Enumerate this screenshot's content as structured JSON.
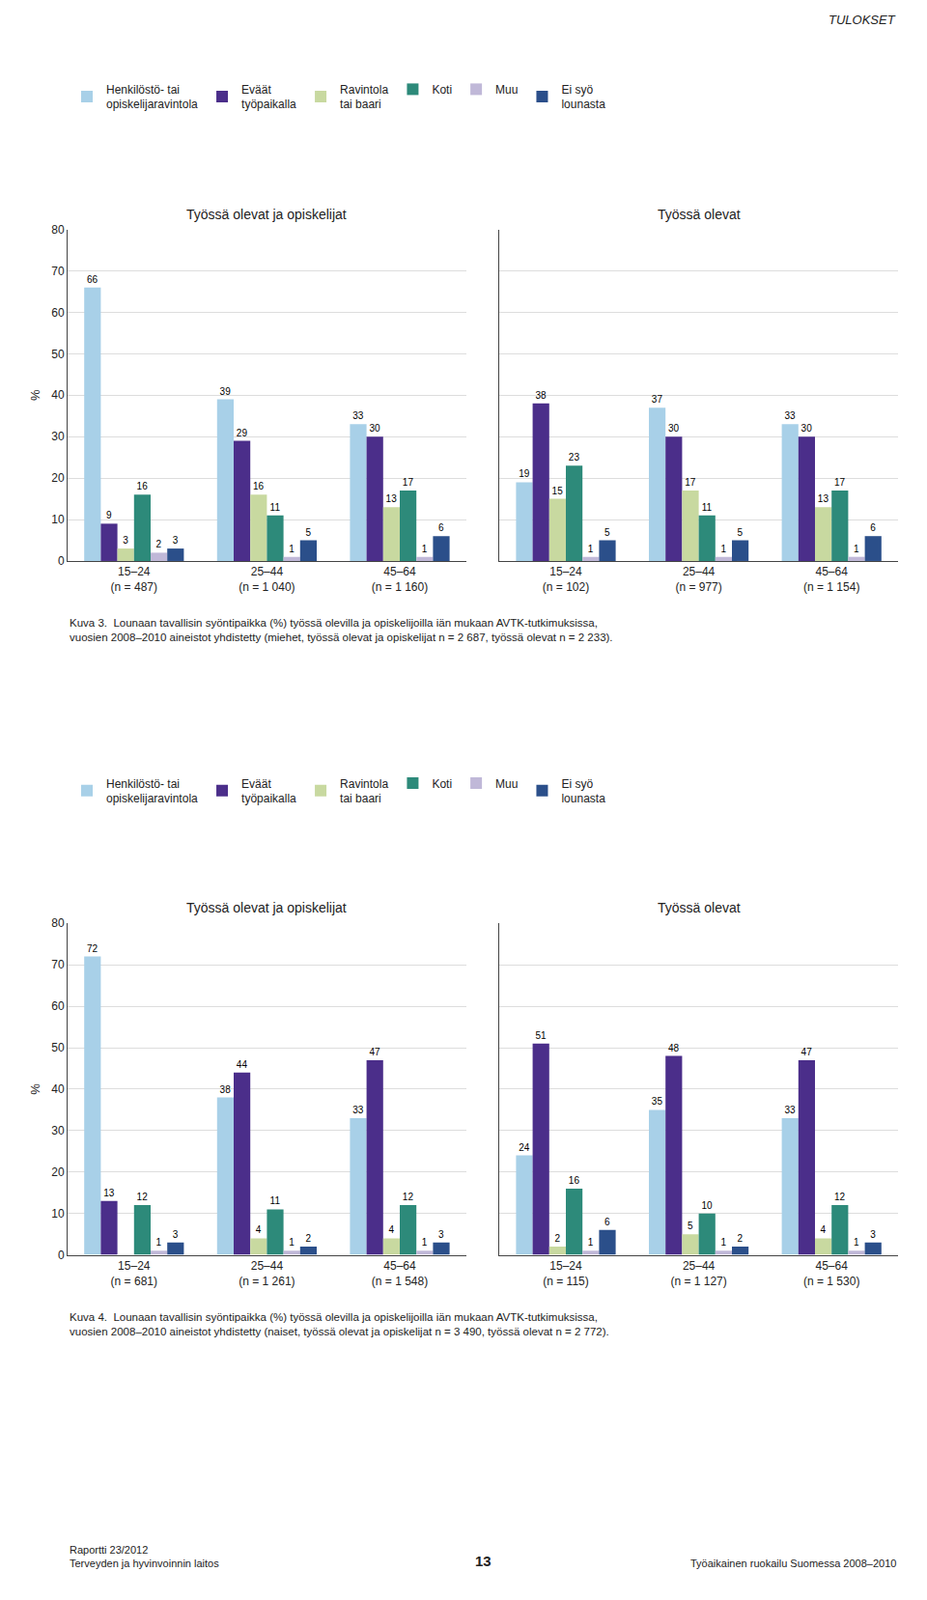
{
  "chart_data": [
    {
      "type": "bar",
      "title": "Työssä olevat ja opiskelijat",
      "ylabel": "%",
      "categories": [
        "15–24\n(n = 487)",
        "25–44\n(n = 1 040)",
        "45–64\n(n = 1 160)"
      ],
      "series": [
        {
          "name": "Henkilöstö- tai\nopiskelijaravintola",
          "color": "#a8d0e8",
          "values": [
            66,
            39,
            33
          ]
        },
        {
          "name": "Eväät\ntyöpaikalla",
          "color": "#4b2e8a",
          "values": [
            9,
            29,
            30
          ]
        },
        {
          "name": "Ravintola\ntai baari",
          "color": "#c8d9a0",
          "values": [
            3,
            16,
            13
          ]
        },
        {
          "name": "Koti",
          "color": "#2d8a7a",
          "values": [
            16,
            11,
            17
          ]
        },
        {
          "name": "Muu",
          "color": "#c0b8d8",
          "values": [
            2,
            1,
            1
          ]
        },
        {
          "name": "Ei syö\nlounasta",
          "color": "#2b4f8a",
          "values": [
            3,
            5,
            6
          ]
        }
      ],
      "ylim": [
        0,
        80
      ],
      "yticks": [
        0,
        10,
        20,
        30,
        40,
        50,
        60,
        70,
        80
      ],
      "grid": true,
      "data_labels": true,
      "legend": "top",
      "annotations": [
        "Kuva 3.  Lounaan tavallisin syöntipaikka (%) työssä olevilla ja opiskelijoilla iän mukaan AVTK-tutkimuksissa,\nvuosien 2008–2010 aineistot yhdistetty (miehet, työssä olevat ja opiskelijat n = 2 687, työssä olevat n = 2 233)."
      ]
    },
    {
      "type": "bar",
      "title": "Työssä olevat",
      "categories": [
        "15–24\n(n = 102)",
        "25–44\n(n = 977)",
        "45–64\n(n = 1 154)"
      ],
      "series": [
        {
          "name": "Henkilöstö- tai\nopiskelijaravintola",
          "color": "#a8d0e8",
          "values": [
            19,
            37,
            33
          ]
        },
        {
          "name": "Eväät\ntyöpaikalla",
          "color": "#4b2e8a",
          "values": [
            38,
            30,
            30
          ]
        },
        {
          "name": "Ravintola\ntai baari",
          "color": "#c8d9a0",
          "values": [
            15,
            17,
            13
          ]
        },
        {
          "name": "Koti",
          "color": "#2d8a7a",
          "values": [
            23,
            11,
            17
          ]
        },
        {
          "name": "Muu",
          "color": "#c0b8d8",
          "values": [
            1,
            1,
            1
          ]
        },
        {
          "name": "Ei syö\nlounasta",
          "color": "#2b4f8a",
          "values": [
            5,
            5,
            6
          ]
        }
      ],
      "ylim": [
        0,
        80
      ],
      "yticks": [
        0,
        10,
        20,
        30,
        40,
        50,
        60,
        70,
        80
      ],
      "grid": true,
      "data_labels": true,
      "tick_labels": "x"
    },
    {
      "type": "bar",
      "title": "Työssä olevat ja opiskelijat",
      "ylabel": "%",
      "categories": [
        "15–24\n(n = 681)",
        "25–44\n(n = 1 261)",
        "45–64\n(n = 1 548)"
      ],
      "series": [
        {
          "name": "Henkilöstö- tai\nopiskelijaravintola",
          "color": "#a8d0e8",
          "values": [
            72,
            38,
            33
          ]
        },
        {
          "name": "Eväät\ntyöpaikalla",
          "color": "#4b2e8a",
          "values": [
            13,
            44,
            47
          ]
        },
        {
          "name": "Ravintola\ntai baari",
          "color": "#c8d9a0",
          "values": [
            0,
            4,
            4
          ],
          "value_labels": [
            null,
            "4",
            "4"
          ]
        },
        {
          "name": "Koti",
          "color": "#2d8a7a",
          "values": [
            12,
            11,
            12
          ]
        },
        {
          "name": "Muu",
          "color": "#c0b8d8",
          "values": [
            1,
            1,
            1
          ]
        },
        {
          "name": "Ei syö\nlounasta",
          "color": "#2b4f8a",
          "values": [
            3,
            2,
            3
          ]
        }
      ],
      "ylim": [
        0,
        80
      ],
      "yticks": [
        0,
        10,
        20,
        30,
        40,
        50,
        60,
        70,
        80
      ],
      "grid": true,
      "data_labels": true,
      "legend": "top",
      "annotations": [
        "Kuva 4.  Lounaan tavallisin syöntipaikka (%) työssä olevilla ja opiskelijoilla iän mukaan AVTK-tutkimuksissa,\nvuosien 2008–2010 aineistot yhdistetty (naiset, työssä olevat ja opiskelijat n = 3 490, työssä olevat n = 2 772)."
      ]
    },
    {
      "type": "bar",
      "title": "Työssä olevat",
      "categories": [
        "15–24\n(n = 115)",
        "25–44\n(n = 1 127)",
        "45–64\n(n = 1 530)"
      ],
      "series": [
        {
          "name": "Henkilöstö- tai\nopiskelijaravintola",
          "color": "#a8d0e8",
          "values": [
            24,
            35,
            33
          ]
        },
        {
          "name": "Eväät\ntyöpaikalla",
          "color": "#4b2e8a",
          "values": [
            51,
            48,
            47
          ]
        },
        {
          "name": "Ravintola\ntai baari",
          "color": "#c8d9a0",
          "values": [
            2,
            5,
            4
          ]
        },
        {
          "name": "Koti",
          "color": "#2d8a7a",
          "values": [
            16,
            10,
            12
          ]
        },
        {
          "name": "Muu",
          "color": "#c0b8d8",
          "values": [
            1,
            1,
            1
          ]
        },
        {
          "name": "Ei syö\nlounasta",
          "color": "#2b4f8a",
          "values": [
            6,
            2,
            3
          ]
        }
      ],
      "ylim": [
        0,
        80
      ],
      "yticks": [
        0,
        10,
        20,
        30,
        40,
        50,
        60,
        70,
        80
      ],
      "grid": true,
      "data_labels": true,
      "tick_labels": "x"
    }
  ],
  "annotations": [
    "TULOKSET",
    "Raportti 23/2012\nTerveyden ja hyvinvoinnin laitos",
    "Työaikainen ruokailu Suomessa 2008–2010",
    "13"
  ]
}
